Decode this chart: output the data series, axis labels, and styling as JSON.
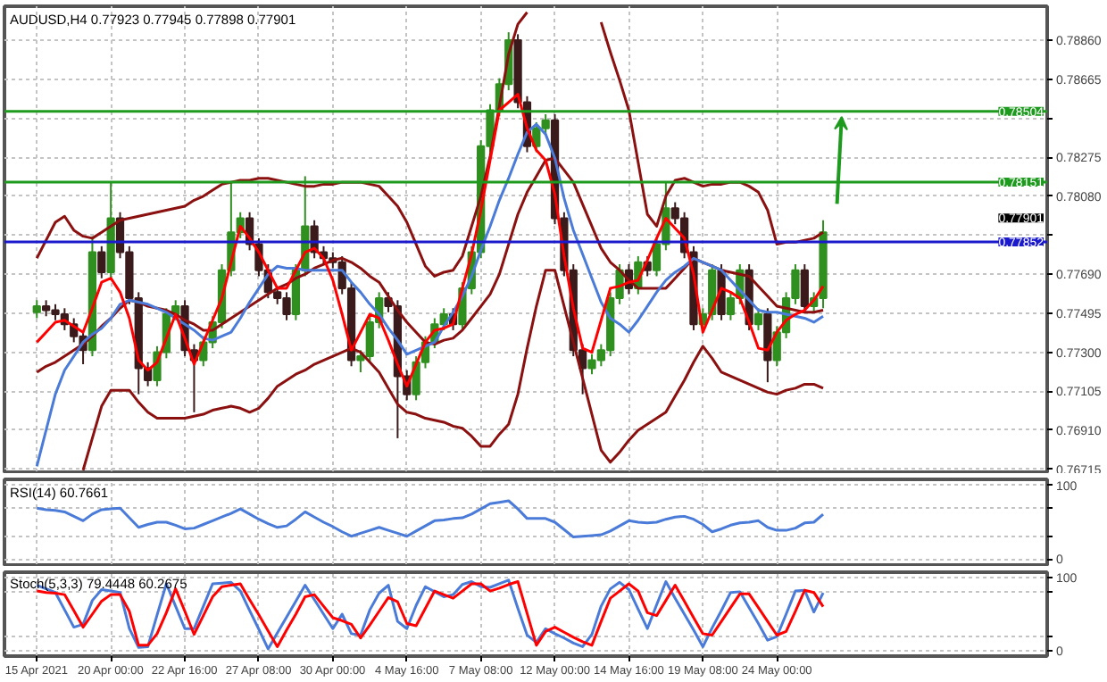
{
  "chart_data": [
    {
      "type": "candlestick",
      "title": "AUDUSD,H4 0.77923 0.77945 0.77898 0.77901",
      "tick_labels": "y",
      "grid": true,
      "categories": [
        null,
        null,
        null,
        null,
        null,
        null,
        null,
        null,
        null,
        null,
        null,
        null,
        null,
        null,
        null,
        null,
        null,
        null,
        null,
        null,
        null,
        null,
        null,
        null,
        null,
        null,
        null,
        null,
        null,
        null,
        null,
        null,
        null,
        null,
        null,
        null,
        null,
        null,
        null,
        null,
        null,
        null,
        null,
        null,
        null,
        null,
        null,
        null,
        null,
        null,
        null,
        null,
        null,
        null,
        null,
        null,
        null,
        null,
        null,
        null,
        null,
        null,
        null,
        null,
        null,
        null,
        null,
        null,
        null,
        null,
        null,
        null,
        null,
        null,
        null,
        null,
        null,
        null,
        null,
        null,
        null,
        null,
        null,
        null,
        null,
        null
      ],
      "ylim": [
        0.767,
        0.7903
      ],
      "yticks": [
        {
          "value": 0.7886,
          "label": "0.78860"
        },
        {
          "value": 0.78665,
          "label": "0.78665"
        },
        {
          "value": 0.7847,
          "label": null
        },
        {
          "value": 0.78275,
          "label": "0.78275"
        },
        {
          "value": 0.7808,
          "label": "0.78080"
        },
        {
          "value": 0.77885,
          "label": null
        },
        {
          "value": 0.7769,
          "label": "0.77690"
        },
        {
          "value": 0.77495,
          "label": "0.77495"
        },
        {
          "value": 0.773,
          "label": "0.77300"
        },
        {
          "value": 0.77105,
          "label": "0.77105"
        },
        {
          "value": 0.7691,
          "label": "0.76910"
        },
        {
          "value": 0.76715,
          "label": "0.76715"
        }
      ],
      "ohlc": [
        [
          0.775,
          0.7756,
          0.7747,
          0.7753
        ],
        [
          0.7753,
          0.7756,
          0.7748,
          0.7751
        ],
        [
          0.7751,
          0.7754,
          0.7746,
          0.7749
        ],
        [
          0.7749,
          0.7752,
          0.7741,
          0.7744
        ],
        [
          0.7744,
          0.7747,
          0.7735,
          0.7738
        ],
        [
          0.7738,
          0.7741,
          0.7724,
          0.7731
        ],
        [
          0.7731,
          0.7788,
          0.7728,
          0.778
        ],
        [
          0.778,
          0.7783,
          0.7767,
          0.777
        ],
        [
          0.777,
          0.7815,
          0.7767,
          0.7797
        ],
        [
          0.7797,
          0.78,
          0.7777,
          0.778
        ],
        [
          0.778,
          0.7783,
          0.7754,
          0.7757
        ],
        [
          0.7757,
          0.776,
          0.7709,
          0.7722
        ],
        [
          0.7722,
          0.7725,
          0.7713,
          0.7716
        ],
        [
          0.7716,
          0.7733,
          0.7713,
          0.773
        ],
        [
          0.773,
          0.7752,
          0.7727,
          0.7749
        ],
        [
          0.7749,
          0.7756,
          0.7746,
          0.7753
        ],
        [
          0.7753,
          0.7756,
          0.7728,
          0.7731
        ],
        [
          0.7731,
          0.7734,
          0.77,
          0.7726
        ],
        [
          0.7726,
          0.7738,
          0.7723,
          0.7735
        ],
        [
          0.7735,
          0.7748,
          0.7732,
          0.7745
        ],
        [
          0.7745,
          0.7774,
          0.7742,
          0.7771
        ],
        [
          0.7771,
          0.7815,
          0.7768,
          0.779
        ],
        [
          0.779,
          0.78,
          0.7787,
          0.7797
        ],
        [
          0.7797,
          0.78,
          0.7781,
          0.7784
        ],
        [
          0.7784,
          0.7787,
          0.7768,
          0.7771
        ],
        [
          0.7771,
          0.7774,
          0.7757,
          0.776
        ],
        [
          0.776,
          0.7763,
          0.7754,
          0.7757
        ],
        [
          0.7757,
          0.776,
          0.7746,
          0.7749
        ],
        [
          0.7749,
          0.7774,
          0.7746,
          0.7771
        ],
        [
          0.7771,
          0.7818,
          0.7768,
          0.7793
        ],
        [
          0.7793,
          0.7796,
          0.7777,
          0.778
        ],
        [
          0.778,
          0.7783,
          0.7774,
          0.7777
        ],
        [
          0.7777,
          0.778,
          0.7772,
          0.7775
        ],
        [
          0.7775,
          0.7778,
          0.7759,
          0.7762
        ],
        [
          0.7762,
          0.7765,
          0.7723,
          0.7726
        ],
        [
          0.7726,
          0.7731,
          0.772,
          0.7728
        ],
        [
          0.7728,
          0.7748,
          0.7725,
          0.7745
        ],
        [
          0.7745,
          0.776,
          0.7742,
          0.7757
        ],
        [
          0.7757,
          0.776,
          0.775,
          0.7753
        ],
        [
          0.7753,
          0.7756,
          0.7687,
          0.7718
        ],
        [
          0.7718,
          0.7721,
          0.7706,
          0.7709
        ],
        [
          0.7709,
          0.7728,
          0.7706,
          0.7725
        ],
        [
          0.7725,
          0.7738,
          0.7722,
          0.7735
        ],
        [
          0.7735,
          0.7747,
          0.7732,
          0.7744
        ],
        [
          0.7744,
          0.7752,
          0.7741,
          0.7749
        ],
        [
          0.7749,
          0.7752,
          0.7741,
          0.7744
        ],
        [
          0.7744,
          0.7765,
          0.7741,
          0.7762
        ],
        [
          0.7762,
          0.7783,
          0.7759,
          0.778
        ],
        [
          0.778,
          0.7836,
          0.7777,
          0.7833
        ],
        [
          0.7833,
          0.7854,
          0.783,
          0.7851
        ],
        [
          0.7851,
          0.7867,
          0.7848,
          0.7864
        ],
        [
          0.7864,
          0.789,
          0.7861,
          0.7886
        ],
        [
          0.7886,
          0.7889,
          0.7852,
          0.7855
        ],
        [
          0.7855,
          0.7858,
          0.783,
          0.7833
        ],
        [
          0.7833,
          0.7845,
          0.783,
          0.7842
        ],
        [
          0.7842,
          0.7849,
          0.7839,
          0.7846
        ],
        [
          0.7846,
          0.7849,
          0.7794,
          0.7797
        ],
        [
          0.7797,
          0.78,
          0.7768,
          0.7771
        ],
        [
          0.7771,
          0.7774,
          0.7728,
          0.7731
        ],
        [
          0.7731,
          0.7734,
          0.7709,
          0.7722
        ],
        [
          0.7722,
          0.7729,
          0.7719,
          0.7726
        ],
        [
          0.7726,
          0.7734,
          0.7723,
          0.7731
        ],
        [
          0.7731,
          0.776,
          0.7728,
          0.7757
        ],
        [
          0.7757,
          0.7774,
          0.7754,
          0.7771
        ],
        [
          0.7771,
          0.7774,
          0.7759,
          0.7762
        ],
        [
          0.7762,
          0.7778,
          0.7759,
          0.7775
        ],
        [
          0.7775,
          0.7778,
          0.7768,
          0.7771
        ],
        [
          0.7771,
          0.7787,
          0.7768,
          0.7784
        ],
        [
          0.7784,
          0.7815,
          0.7781,
          0.7802
        ],
        [
          0.7802,
          0.7805,
          0.7794,
          0.7797
        ],
        [
          0.7797,
          0.78,
          0.7777,
          0.778
        ],
        [
          0.778,
          0.7783,
          0.7741,
          0.7744
        ],
        [
          0.7744,
          0.7752,
          0.7741,
          0.7749
        ],
        [
          0.7749,
          0.7774,
          0.7746,
          0.7771
        ],
        [
          0.7771,
          0.7774,
          0.7746,
          0.7749
        ],
        [
          0.7749,
          0.776,
          0.7746,
          0.7757
        ],
        [
          0.7757,
          0.7774,
          0.7754,
          0.7771
        ],
        [
          0.7771,
          0.7774,
          0.7741,
          0.7744
        ],
        [
          0.7744,
          0.7752,
          0.7741,
          0.7749
        ],
        [
          0.7749,
          0.7752,
          0.7715,
          0.7726
        ],
        [
          0.7726,
          0.7743,
          0.7723,
          0.774
        ],
        [
          0.774,
          0.776,
          0.7737,
          0.7757
        ],
        [
          0.7757,
          0.7774,
          0.7754,
          0.7771
        ],
        [
          0.7771,
          0.7774,
          0.775,
          0.7753
        ],
        [
          0.7753,
          0.776,
          0.775,
          0.7757
        ],
        [
          0.7757,
          0.7796,
          0.7752,
          0.779
        ]
      ],
      "series": [
        {
          "type": "line",
          "color": "#8b1010",
          "values": [
            0.7777,
            0.7786,
            0.7795,
            0.7798,
            0.7791,
            0.7788,
            0.7787,
            0.779,
            0.7793,
            0.7796,
            0.7797,
            0.7798,
            0.7799,
            0.78,
            0.7801,
            0.7802,
            0.7803,
            0.7806,
            0.7808,
            0.7811,
            0.7814,
            0.7815,
            0.7816,
            0.7816,
            0.7817,
            0.7817,
            0.7816,
            0.7815,
            0.7814,
            0.7813,
            0.7813,
            0.7814,
            0.7814,
            0.7815,
            0.7815,
            0.7815,
            0.7814,
            0.7813,
            0.7808,
            0.7803,
            0.7795,
            0.7784,
            0.7773,
            0.7768,
            0.777,
            0.7771,
            0.7778,
            0.7793,
            0.7808,
            0.7828,
            0.7853,
            0.7879,
            0.7894,
            0.79,
            null,
            null,
            null,
            null,
            null,
            null,
            null,
            0.7895,
            0.788,
            0.7866,
            0.7851,
            0.7825,
            0.7799,
            0.7793,
            0.7808,
            0.7816,
            0.7817,
            0.7815,
            0.7813,
            0.7814,
            0.7814,
            0.7815,
            0.7815,
            0.7813,
            0.781,
            0.7801,
            0.7784,
            0.7785,
            0.7785,
            0.7786,
            0.7787,
            0.779
          ]
        },
        {
          "type": "line",
          "color": "#8b1010",
          "values": [
            0.772,
            0.7723,
            0.7725,
            0.7728,
            0.7731,
            0.7734,
            0.7738,
            0.7743,
            0.7747,
            0.7752,
            0.7756,
            0.7755,
            0.7753,
            0.7752,
            0.7751,
            0.7749,
            0.7746,
            0.7744,
            0.7741,
            0.7741,
            0.7744,
            0.7747,
            0.775,
            0.7753,
            0.7756,
            0.7759,
            0.7762,
            0.7764,
            0.7767,
            0.7769,
            0.7772,
            0.7774,
            0.7776,
            0.7777,
            0.7775,
            0.7772,
            0.7768,
            0.7765,
            0.7758,
            0.7751,
            0.7745,
            0.774,
            0.7735,
            0.7734,
            0.7736,
            0.7737,
            0.7741,
            0.7747,
            0.7753,
            0.7759,
            0.7769,
            0.7784,
            0.7799,
            0.781,
            0.7818,
            0.7826,
            0.7827,
            0.7821,
            0.7815,
            0.7804,
            0.7793,
            0.7782,
            0.7775,
            0.7771,
            0.7766,
            0.7762,
            0.7762,
            0.7762,
            0.7762,
            0.7767,
            0.7772,
            0.7777,
            0.7775,
            0.7773,
            0.7771,
            0.777,
            0.7769,
            0.7768,
            0.7763,
            0.7758,
            0.7753,
            0.7752,
            0.7751,
            0.775,
            0.775,
            0.7751
          ]
        },
        {
          "type": "line",
          "color": "#8b1010",
          "values": [
            null,
            null,
            null,
            null,
            null,
            0.7671,
            0.7687,
            0.7703,
            0.7711,
            0.7711,
            0.7711,
            0.7705,
            0.77,
            0.7697,
            0.7697,
            0.7697,
            0.7697,
            0.7698,
            0.7699,
            0.7701,
            0.7702,
            0.7703,
            0.7702,
            0.77,
            0.7702,
            0.7707,
            0.7713,
            0.7716,
            0.7719,
            0.7721,
            0.7724,
            0.7726,
            0.7728,
            0.773,
            0.7732,
            0.773,
            0.7725,
            0.772,
            0.7712,
            0.7704,
            0.77,
            0.7699,
            0.7697,
            0.7696,
            0.7695,
            0.7693,
            0.7692,
            0.7688,
            0.7683,
            0.7683,
            0.7689,
            0.7694,
            0.7709,
            0.7732,
            0.7753,
            0.7771,
            0.7771,
            0.7753,
            0.7735,
            0.7717,
            0.7699,
            0.7681,
            0.7675,
            0.768,
            0.7686,
            0.7691,
            0.7694,
            0.7697,
            0.77,
            0.7708,
            0.7716,
            0.7725,
            0.7733,
            0.7727,
            0.772,
            0.7718,
            0.7716,
            0.7714,
            0.7712,
            0.771,
            0.7709,
            0.7711,
            0.7712,
            0.7714,
            0.7714,
            0.7712
          ]
        },
        {
          "type": "line",
          "color": "#4a7bd8",
          "values": [
            0.7673,
            0.7691,
            0.7709,
            0.7721,
            0.7728,
            0.7735,
            0.7739,
            0.7742,
            0.7747,
            0.7754,
            0.7756,
            0.7755,
            0.7754,
            0.7752,
            0.775,
            0.7747,
            0.7744,
            0.7741,
            0.7737,
            0.7736,
            0.7738,
            0.774,
            0.7747,
            0.7755,
            0.7762,
            0.7769,
            0.7773,
            0.7772,
            0.7772,
            0.7771,
            0.7771,
            0.7771,
            0.7771,
            0.7771,
            0.7765,
            0.776,
            0.7754,
            0.7749,
            0.7742,
            0.7736,
            0.7729,
            0.7731,
            0.7733,
            0.7735,
            0.7743,
            0.775,
            0.7758,
            0.7768,
            0.7781,
            0.7793,
            0.7806,
            0.7817,
            0.7829,
            0.784,
            0.7844,
            0.7839,
            0.7827,
            0.7807,
            0.7791,
            0.7779,
            0.7767,
            0.7755,
            0.7747,
            0.7744,
            0.774,
            0.7746,
            0.7753,
            0.776,
            0.7766,
            0.777,
            0.7773,
            0.7777,
            0.7775,
            0.7773,
            0.7771,
            0.7766,
            0.7761,
            0.7756,
            0.7751,
            0.775,
            0.775,
            0.7749,
            0.7748,
            0.7747,
            0.7745,
            0.7748
          ]
        },
        {
          "type": "line",
          "color": "#ff0000",
          "values": [
            0.7735,
            0.774,
            0.7745,
            0.7746,
            0.7743,
            0.774,
            0.7752,
            0.7765,
            0.7767,
            0.776,
            0.7747,
            0.7726,
            0.7721,
            0.7725,
            0.7737,
            0.7749,
            0.7737,
            0.7724,
            0.7735,
            0.7746,
            0.7757,
            0.7775,
            0.7793,
            0.7787,
            0.778,
            0.7771,
            0.7762,
            0.7762,
            0.7771,
            0.778,
            0.7782,
            0.7777,
            0.7766,
            0.7749,
            0.7731,
            0.774,
            0.7749,
            0.7747,
            0.7736,
            0.7724,
            0.7713,
            0.7724,
            0.7735,
            0.7741,
            0.7742,
            0.7744,
            0.7762,
            0.7779,
            0.7801,
            0.7826,
            0.7851,
            0.7855,
            0.7859,
            0.7842,
            0.7831,
            0.7826,
            0.7809,
            0.7778,
            0.7752,
            0.7732,
            0.773,
            0.7746,
            0.7762,
            0.7763,
            0.7765,
            0.7766,
            0.7776,
            0.7787,
            0.7797,
            0.7792,
            0.7787,
            0.7769,
            0.774,
            0.7751,
            0.7762,
            0.776,
            0.7757,
            0.7745,
            0.7732,
            0.7731,
            0.774,
            0.7746,
            0.7749,
            0.7751,
            0.7756,
            0.7763
          ]
        }
      ],
      "ref_lines": [
        {
          "axis": "y",
          "value": 0.78504,
          "label": "0.78504",
          "color": "#1e9a1e"
        },
        {
          "axis": "y",
          "value": 0.78151,
          "label": "0.78151",
          "color": "#1e9a1e"
        },
        {
          "axis": "y",
          "value": 0.77852,
          "label": "0.77852",
          "color": "#1a1acc"
        }
      ],
      "annotations": [
        "0.77901"
      ]
    },
    {
      "type": "line",
      "title": "RSI(14) 60.7661",
      "tick_labels": "y",
      "grid": true,
      "categories": [
        null,
        null,
        null,
        null,
        null,
        null,
        null,
        null,
        null,
        null,
        null,
        null,
        null,
        null,
        null,
        null,
        null,
        null,
        null,
        null,
        null,
        null,
        null,
        null,
        null,
        null,
        null,
        null,
        null,
        null,
        null,
        null,
        null,
        null,
        null,
        null,
        null,
        null,
        null,
        null,
        null,
        null,
        null,
        null,
        null,
        null,
        null,
        null,
        null,
        null,
        null,
        null,
        null,
        null,
        null,
        null,
        null,
        null,
        null,
        null,
        null,
        null,
        null,
        null,
        null,
        null,
        null,
        null,
        null,
        null,
        null,
        null,
        null,
        null,
        null,
        null,
        null,
        null,
        null,
        null,
        null,
        null,
        null,
        null,
        null,
        null
      ],
      "ylim": [
        -8,
        108
      ],
      "yticks": [
        100,
        {
          "value": 70,
          "label": null
        },
        {
          "value": 30,
          "label": null
        },
        0
      ],
      "series": [
        {
          "color": "#4a7bd8",
          "values": [
            69,
            67,
            66,
            64,
            58,
            52,
            61,
            67,
            68,
            69,
            56,
            43,
            47,
            50,
            50,
            46,
            41,
            42,
            47,
            52,
            57,
            62,
            68,
            61,
            54,
            48,
            43,
            45,
            54,
            64,
            57,
            50,
            44,
            37,
            31,
            35,
            39,
            43,
            39,
            35,
            31,
            38,
            45,
            52,
            53,
            55,
            56,
            61,
            68,
            75,
            77,
            79,
            68,
            55,
            55,
            55,
            50,
            40,
            30,
            31,
            32,
            33,
            38,
            45,
            52,
            50,
            49,
            50,
            54,
            57,
            58,
            54,
            47,
            37,
            41,
            46,
            49,
            50,
            52,
            43,
            39,
            39,
            42,
            49,
            50,
            60.7661
          ]
        }
      ]
    },
    {
      "type": "line",
      "title": "Stoch(5,3,3) 79.4448 60.2675",
      "grid": true,
      "categories": [
        "15 Apr 2021",
        null,
        null,
        null,
        null,
        null,
        null,
        null,
        "20 Apr 00:00",
        null,
        null,
        null,
        null,
        null,
        null,
        null,
        "22 Apr 16:00",
        null,
        null,
        null,
        null,
        null,
        null,
        null,
        "27 Apr 08:00",
        null,
        null,
        null,
        null,
        null,
        null,
        null,
        "30 Apr 00:00",
        null,
        null,
        null,
        null,
        null,
        null,
        null,
        "4 May 16:00",
        null,
        null,
        null,
        null,
        null,
        null,
        null,
        "7 May 08:00",
        null,
        null,
        null,
        null,
        null,
        null,
        null,
        "12 May 00:00",
        null,
        null,
        null,
        null,
        null,
        null,
        null,
        "14 May 16:00",
        null,
        null,
        null,
        null,
        null,
        null,
        null,
        "19 May 08:00",
        null,
        null,
        null,
        null,
        null,
        null,
        null,
        "24 May 00:00",
        null,
        null,
        null,
        null,
        null
      ],
      "ylim": [
        -8,
        108
      ],
      "yticks": [
        100,
        {
          "value": 80,
          "label": null
        },
        {
          "value": 20,
          "label": null
        },
        0
      ],
      "series": [
        {
          "color": "#4a7bd8",
          "values": [
            90,
            85,
            80,
            56,
            32,
            36,
            69,
            84,
            82,
            80,
            30,
            4,
            5,
            49,
            92,
            61,
            30,
            30,
            61,
            92,
            93,
            94,
            82,
            55,
            29,
            2,
            24,
            46,
            68,
            90,
            70,
            50,
            30,
            50,
            23,
            21,
            56,
            79,
            90,
            40,
            30,
            62,
            88,
            81,
            74,
            77,
            91,
            95,
            88,
            87,
            92,
            97,
            58,
            21,
            11,
            30,
            23,
            17,
            10,
            5,
            22,
            61,
            85,
            94,
            84,
            57,
            30,
            63,
            95,
            72,
            50,
            28,
            5,
            31,
            55,
            80,
            81,
            59,
            37,
            14,
            19,
            50,
            82,
            83,
            53,
            79.4448
          ]
        },
        {
          "color": "#ff0000",
          "values": [
            82,
            80,
            79,
            77,
            55,
            32,
            50,
            68,
            77,
            77,
            54,
            7,
            7,
            23,
            52,
            85,
            54,
            22,
            48,
            74,
            88,
            90,
            92,
            70,
            49,
            27,
            5,
            28,
            50,
            74,
            77,
            61,
            45,
            41,
            36,
            17,
            35,
            54,
            73,
            67,
            37,
            34,
            58,
            82,
            77,
            72,
            82,
            92,
            92,
            82,
            86,
            91,
            95,
            51,
            7,
            26,
            32,
            25,
            18,
            12,
            7,
            40,
            72,
            82,
            92,
            82,
            52,
            48,
            69,
            90,
            68,
            45,
            23,
            21,
            40,
            59,
            78,
            78,
            59,
            40,
            21,
            26,
            54,
            83,
            80,
            60.2675
          ]
        }
      ]
    }
  ]
}
